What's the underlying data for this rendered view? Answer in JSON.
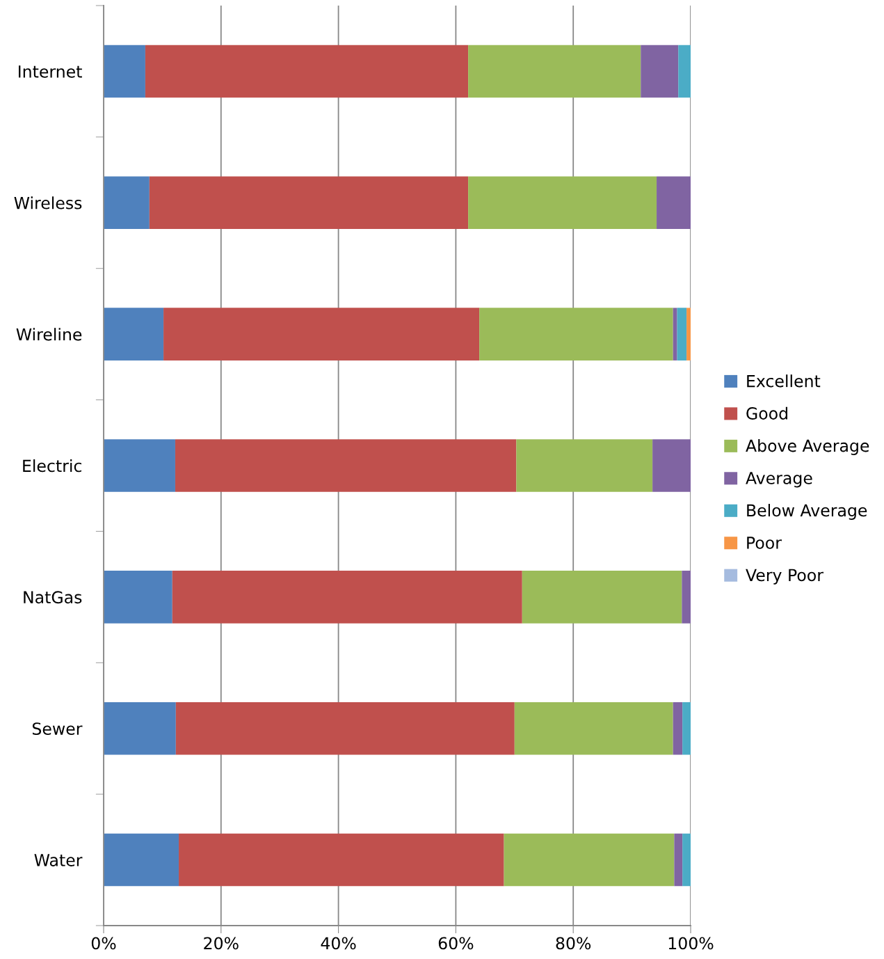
{
  "chart_data": {
    "type": "bar",
    "orientation": "horizontal",
    "stacked": true,
    "categories": [
      "Internet",
      "Wireless",
      "Wireline",
      "Electric",
      "NatGas",
      "Sewer",
      "Water"
    ],
    "series": [
      {
        "name": "Excellent",
        "color": "#4f81bd",
        "values": [
          7.1,
          7.8,
          10.2,
          12.2,
          11.7,
          12.3,
          12.8
        ]
      },
      {
        "name": "Good",
        "color": "#c0504d",
        "values": [
          55.0,
          54.3,
          53.8,
          58.1,
          59.6,
          57.7,
          55.4
        ]
      },
      {
        "name": "Above Average",
        "color": "#9bbb59",
        "values": [
          29.4,
          32.1,
          33.0,
          23.2,
          27.2,
          27.0,
          29.0
        ]
      },
      {
        "name": "Average",
        "color": "#8064a2",
        "values": [
          6.4,
          5.8,
          0.7,
          6.5,
          1.5,
          1.6,
          1.4
        ]
      },
      {
        "name": "Below Average",
        "color": "#4bacc6",
        "values": [
          2.1,
          null,
          1.6,
          null,
          null,
          1.4,
          1.4
        ]
      },
      {
        "name": "Poor",
        "color": "#f79646",
        "values": [
          null,
          null,
          0.7,
          null,
          null,
          null,
          null
        ]
      },
      {
        "name": "Very Poor",
        "color": "#a5bbdf",
        "values": [
          null,
          null,
          null,
          null,
          null,
          null,
          null
        ]
      }
    ],
    "xlim": [
      0,
      100
    ],
    "xticks": [
      {
        "value": 0,
        "label": "0%"
      },
      {
        "value": 20,
        "label": "20%"
      },
      {
        "value": 40,
        "label": "40%"
      },
      {
        "value": 60,
        "label": "60%"
      },
      {
        "value": 80,
        "label": "80%"
      },
      {
        "value": 100,
        "label": "100%"
      }
    ],
    "grid": "x",
    "legend": "right"
  }
}
